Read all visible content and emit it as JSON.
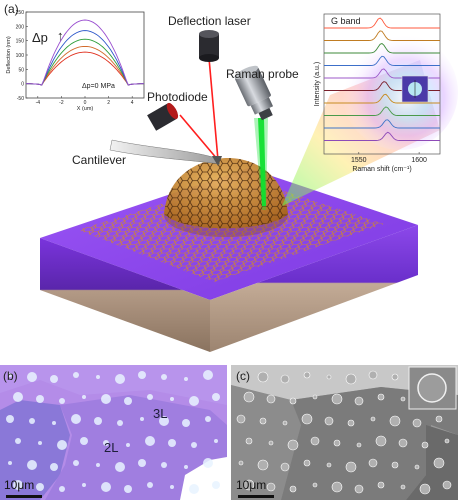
{
  "labels": {
    "panel_a": "(a)",
    "panel_b": "(b)",
    "panel_c": "(c)",
    "deflection_laser": "Deflection laser",
    "raman_probe": "Raman probe",
    "photodiode": "Photodiode",
    "cantilever": "Cantilever",
    "delta_p": "Δp",
    "delta_p_zero": "Δp=0 MPa",
    "g_band": "G band",
    "layer_3l": "3L",
    "layer_2l": "2L",
    "scalebar_b": "10μm",
    "scalebar_c": "10μm"
  },
  "chart_data": [
    {
      "type": "line",
      "title": "",
      "xlabel": "X (um)",
      "ylabel": "Deflection (nm)",
      "xlim": [
        -5,
        5
      ],
      "ylim": [
        -50,
        250
      ],
      "xticks": [
        "-4",
        "-2",
        "0",
        "2",
        "4"
      ],
      "yticks": [
        "250",
        "200",
        "150",
        "100",
        "50",
        "0",
        "-50"
      ],
      "series": [
        {
          "color": "#e0301e",
          "peak": 110
        },
        {
          "color": "#d26b2c",
          "peak": 130
        },
        {
          "color": "#2e9e3a",
          "peak": 155
        },
        {
          "color": "#2a55c9",
          "peak": 185
        },
        {
          "color": "#9a4fd0",
          "peak": 222
        }
      ],
      "annotation": "Δp=0 MPa"
    },
    {
      "type": "line",
      "xlabel": "Raman shift (cm⁻¹)",
      "ylabel": "Intensity (a.u.)",
      "xticks": [
        "1550",
        "1600"
      ],
      "annotation": "G band",
      "series": [
        {
          "color": "#ff5a3d"
        },
        {
          "color": "#c07c22"
        },
        {
          "color": "#3c8a3a"
        },
        {
          "color": "#3c6fc9"
        },
        {
          "color": "#9c58c8"
        },
        {
          "color": "#7a1f2a"
        },
        {
          "color": "#c78b20"
        },
        {
          "color": "#4a9a4a"
        },
        {
          "color": "#3f74c8"
        },
        {
          "color": "#8e4bb8"
        }
      ]
    }
  ],
  "colors": {
    "substrate_top": "#8f45f0",
    "substrate_side": "#6b2fc4",
    "silicon_side": "#a58e7a",
    "graphene": "#d28a2a",
    "laser_red": "#ff2020",
    "laser_green": "#10d030",
    "optical_bg": "#b88ae6",
    "sem_bg": "#8e8e8e"
  }
}
